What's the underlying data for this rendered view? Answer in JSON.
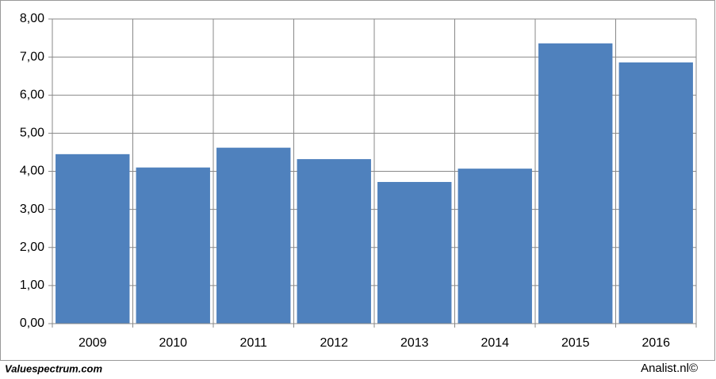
{
  "chart_data": {
    "type": "bar",
    "categories": [
      "2009",
      "2010",
      "2011",
      "2012",
      "2013",
      "2014",
      "2015",
      "2016"
    ],
    "values": [
      4.45,
      4.1,
      4.62,
      4.32,
      3.72,
      4.07,
      7.36,
      6.86
    ],
    "color": "#4f81bd",
    "ylim": [
      0,
      8
    ],
    "yticks": [
      {
        "value": 0,
        "label": "0,00"
      },
      {
        "value": 1,
        "label": "1,00"
      },
      {
        "value": 2,
        "label": "2,00"
      },
      {
        "value": 3,
        "label": "3,00"
      },
      {
        "value": 4,
        "label": "4,00"
      },
      {
        "value": 5,
        "label": "5,00"
      },
      {
        "value": 6,
        "label": "6,00"
      },
      {
        "value": 7,
        "label": "7,00"
      },
      {
        "value": 8,
        "label": "8,00"
      }
    ],
    "grid": true,
    "source": "Valuespectrum.com",
    "credit": "Analist.nl©"
  }
}
